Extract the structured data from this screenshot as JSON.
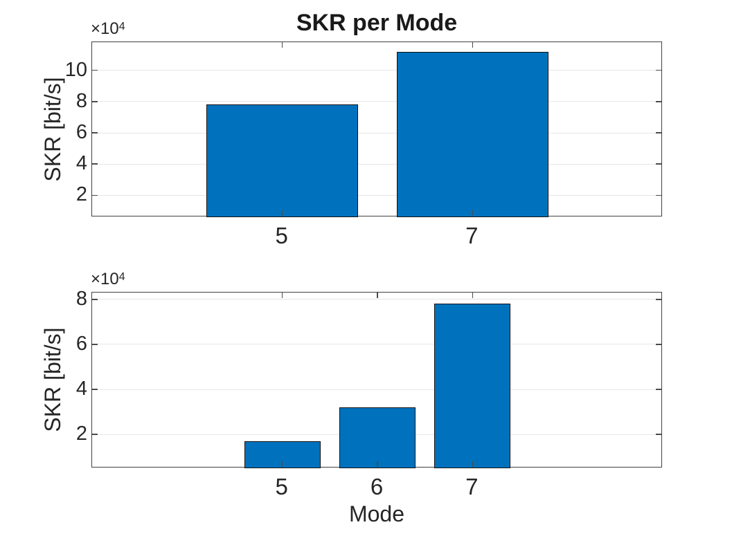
{
  "figure": {
    "background": "#ffffff",
    "title": "SKR per Mode"
  },
  "chart_data": [
    {
      "type": "bar",
      "title": "SKR per Mode",
      "xlabel": "",
      "ylabel": "SKR [bit/s]",
      "y_multiplier_base": "×10",
      "y_multiplier_exponent": "4",
      "categories": [
        5,
        7
      ],
      "values": [
        78000,
        112000
      ],
      "xtick_labels": [
        "5",
        "7"
      ],
      "yticks": [
        20000,
        40000,
        60000,
        80000,
        100000
      ],
      "ytick_labels": [
        "2",
        "4",
        "6",
        "8",
        "10"
      ],
      "xlim": [
        3,
        9
      ],
      "ylim": [
        6000,
        118000
      ],
      "bar_width_units": 1.6,
      "grid": true,
      "legend": "none",
      "colors": {
        "bar_fill": "#0072BD",
        "bar_edge": "#101010",
        "axis": "#404040",
        "grid": "#e6e6e6",
        "text": "#262626"
      }
    },
    {
      "type": "bar",
      "title": "",
      "xlabel": "Mode",
      "ylabel": "SKR [bit/s]",
      "y_multiplier_base": "×10",
      "y_multiplier_exponent": "4",
      "categories": [
        5,
        6,
        7
      ],
      "values": [
        17000,
        32000,
        78000
      ],
      "xtick_labels": [
        "5",
        "6",
        "7"
      ],
      "yticks": [
        20000,
        40000,
        60000,
        80000
      ],
      "ytick_labels": [
        "2",
        "4",
        "6",
        "8"
      ],
      "xlim": [
        3,
        9
      ],
      "ylim": [
        5000,
        83000
      ],
      "bar_width_units": 0.8,
      "grid": true,
      "legend": "none",
      "colors": {
        "bar_fill": "#0072BD",
        "bar_edge": "#101010",
        "axis": "#404040",
        "grid": "#e6e6e6",
        "text": "#262626"
      }
    }
  ]
}
